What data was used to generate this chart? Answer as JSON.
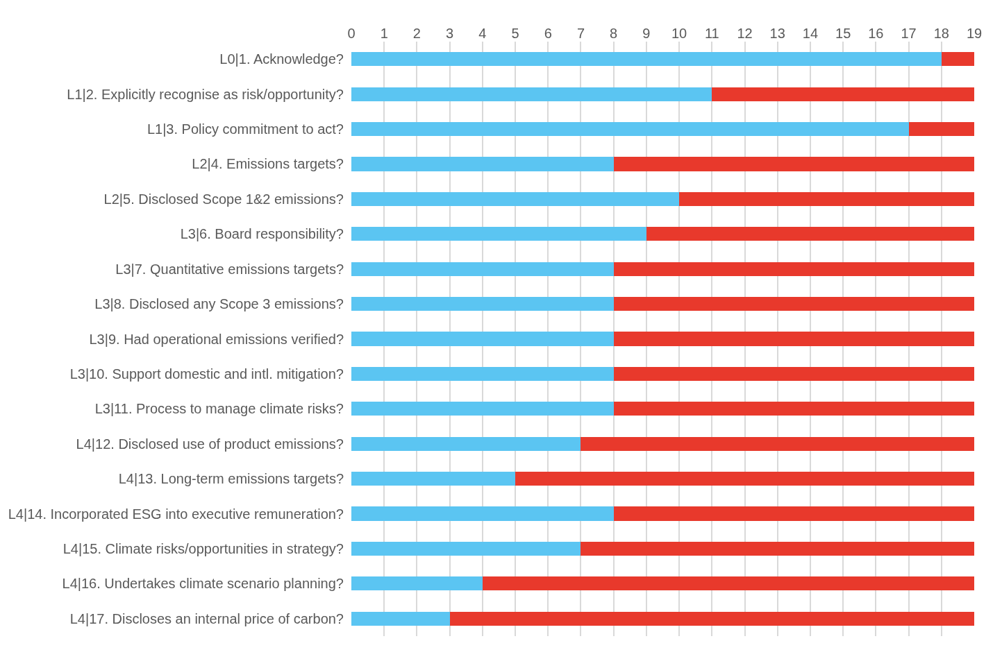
{
  "chart_data": {
    "type": "bar",
    "orientation": "horizontal",
    "stacked": true,
    "grid": "x",
    "categories": [
      "L0|1. Acknowledge?",
      "L1|2. Explicitly recognise as risk/opportunity?",
      "L1|3. Policy commitment to act?",
      "L2|4. Emissions targets?",
      "L2|5. Disclosed Scope 1&2 emissions?",
      "L3|6. Board responsibility?",
      "L3|7. Quantitative emissions targets?",
      "L3|8. Disclosed any Scope 3 emissions?",
      "L3|9. Had operational emissions verified?",
      "L3|10. Support domestic and intl. mitigation?",
      "L3|11. Process to manage climate risks?",
      "L4|12. Disclosed use of product emissions?",
      "L4|13. Long-term emissions targets?",
      "L4|14. Incorporated ESG into executive remuneration?",
      "L4|15. Climate risks/opportunities in strategy?",
      "L4|16. Undertakes climate scenario planning?",
      "L4|17. Discloses an internal price of carbon?"
    ],
    "series": [
      {
        "color": "#5bc5f2",
        "values": [
          18,
          11,
          17,
          8,
          10,
          9,
          8,
          8,
          8,
          8,
          8,
          7,
          5,
          8,
          7,
          4,
          3
        ]
      },
      {
        "color": "#e8392c",
        "values": [
          1,
          8,
          2,
          11,
          9,
          10,
          11,
          11,
          11,
          11,
          11,
          12,
          14,
          11,
          12,
          15,
          16
        ]
      }
    ],
    "xlim": [
      0,
      19
    ],
    "xticks": [
      0,
      1,
      2,
      3,
      4,
      5,
      6,
      7,
      8,
      9,
      10,
      11,
      12,
      13,
      14,
      15,
      16,
      17,
      18,
      19
    ]
  }
}
